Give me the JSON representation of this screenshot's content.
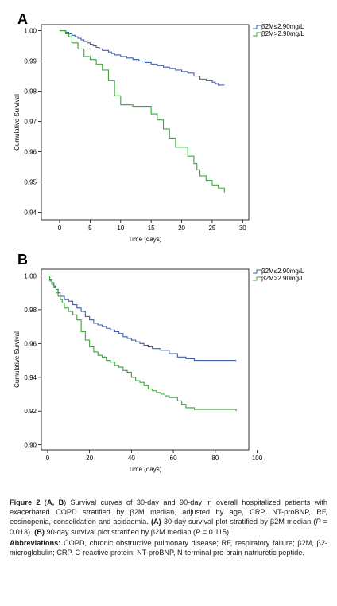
{
  "chart_data": [
    {
      "type": "line",
      "panel_label": "A",
      "xlabel": "Time (days)",
      "ylabel": "Cumulative Survival",
      "xlim": [
        -3,
        31
      ],
      "ylim": [
        0.9375,
        1.002
      ],
      "x_ticks": [
        0,
        5,
        10,
        15,
        20,
        25,
        30
      ],
      "y_ticks": [
        0.94,
        0.95,
        0.96,
        0.97,
        0.98,
        0.99,
        1.0
      ],
      "y_tick_labels": [
        "0.94",
        "0.95",
        "0.96",
        "0.97",
        "0.98",
        "0.99",
        "1.00"
      ],
      "legend_position": "top-right",
      "series": [
        {
          "name": "β2M≤2.90mg/L",
          "color": "#3e5fa8",
          "x": [
            0,
            1,
            1.5,
            2,
            2.5,
            3,
            3.5,
            4,
            4.5,
            5,
            5.5,
            6,
            6.5,
            7,
            8,
            8.5,
            9,
            10,
            11,
            12,
            13,
            14,
            15,
            16,
            17,
            18,
            19,
            20,
            21,
            22,
            23,
            24,
            25,
            25.5,
            26,
            27
          ],
          "y": [
            1.0,
            0.9995,
            0.999,
            0.9985,
            0.998,
            0.9975,
            0.997,
            0.9965,
            0.996,
            0.9955,
            0.995,
            0.9945,
            0.994,
            0.9935,
            0.993,
            0.9925,
            0.992,
            0.9915,
            0.991,
            0.9905,
            0.99,
            0.9895,
            0.989,
            0.9885,
            0.988,
            0.9875,
            0.987,
            0.9865,
            0.986,
            0.985,
            0.984,
            0.9835,
            0.983,
            0.9825,
            0.982,
            0.982
          ]
        },
        {
          "name": "β2M>2.90mg/L",
          "color": "#3aa63a",
          "x": [
            0,
            1,
            1.5,
            2,
            3,
            4,
            5,
            6,
            7,
            8,
            9,
            10,
            11,
            12,
            13,
            14,
            15,
            16,
            17,
            18,
            19,
            20,
            21,
            22,
            22.5,
            23,
            24,
            25,
            26,
            27
          ],
          "y": [
            1.0,
            0.999,
            0.998,
            0.996,
            0.994,
            0.9915,
            0.9905,
            0.989,
            0.987,
            0.9835,
            0.9785,
            0.9755,
            0.9755,
            0.975,
            0.975,
            0.975,
            0.9725,
            0.9705,
            0.9675,
            0.9645,
            0.9615,
            0.9615,
            0.9585,
            0.956,
            0.954,
            0.952,
            0.9505,
            0.949,
            0.948,
            0.9465
          ]
        }
      ]
    },
    {
      "type": "line",
      "panel_label": "B",
      "xlabel": "Time (days)",
      "ylabel": "Cumulative Survival",
      "xlim": [
        -3,
        96
      ],
      "ylim": [
        0.897,
        1.004
      ],
      "x_ticks": [
        0,
        20,
        40,
        60,
        80,
        100
      ],
      "y_ticks": [
        0.9,
        0.92,
        0.94,
        0.96,
        0.98,
        1.0
      ],
      "y_tick_labels": [
        "0.90",
        "0.92",
        "0.94",
        "0.96",
        "0.98",
        "1.00"
      ],
      "legend_position": "top-right",
      "series": [
        {
          "name": "β2M≤2.90mg/L",
          "color": "#3e5fa8",
          "x": [
            0,
            1,
            2,
            3,
            4,
            5,
            6,
            8,
            10,
            12,
            14,
            16,
            18,
            20,
            22,
            24,
            26,
            28,
            30,
            32,
            34,
            36,
            38,
            40,
            42,
            44,
            46,
            48,
            50,
            54,
            58,
            62,
            66,
            70,
            90
          ],
          "y": [
            1.0,
            0.998,
            0.996,
            0.994,
            0.992,
            0.99,
            0.988,
            0.986,
            0.985,
            0.983,
            0.981,
            0.979,
            0.976,
            0.974,
            0.972,
            0.971,
            0.97,
            0.969,
            0.968,
            0.967,
            0.966,
            0.964,
            0.963,
            0.962,
            0.961,
            0.96,
            0.959,
            0.958,
            0.957,
            0.956,
            0.954,
            0.952,
            0.951,
            0.95,
            0.95
          ]
        },
        {
          "name": "β2M>2.90mg/L",
          "color": "#3aa63a",
          "x": [
            0,
            1,
            2,
            3,
            4,
            5,
            6,
            7,
            8,
            10,
            12,
            14,
            16,
            18,
            20,
            22,
            24,
            26,
            28,
            30,
            32,
            34,
            36,
            38,
            40,
            42,
            44,
            46,
            48,
            50,
            52,
            54,
            56,
            58,
            60,
            62,
            64,
            66,
            70,
            90
          ],
          "y": [
            1.0,
            0.997,
            0.995,
            0.993,
            0.99,
            0.988,
            0.986,
            0.984,
            0.981,
            0.979,
            0.977,
            0.974,
            0.967,
            0.962,
            0.958,
            0.955,
            0.953,
            0.952,
            0.95,
            0.949,
            0.947,
            0.946,
            0.944,
            0.943,
            0.94,
            0.938,
            0.937,
            0.935,
            0.933,
            0.932,
            0.931,
            0.93,
            0.929,
            0.928,
            0.928,
            0.926,
            0.924,
            0.922,
            0.921,
            0.92
          ]
        }
      ]
    }
  ],
  "caption": {
    "lead": "Figure 2",
    "lead_paren_open": " (",
    "lead_panels": "A, B",
    "lead_paren_close": ")",
    "main": " Survival curves of 30-day and 90-day in overall hospitalized patients with exacerbated COPD stratified by β2M median, adjusted by age, CRP, NT-proBNP, RF, eosinopenia, consolidation and acidaemia. ",
    "a_label": "(A)",
    "a_text": " 30-day survival plot stratified by β2M median (",
    "a_p": "P",
    "a_p_text": " = 0.013). ",
    "b_label": "(B)",
    "b_text": " 90-day survival plot stratified by β2M median (",
    "b_p": "P",
    "b_p_text": " = 0.115).",
    "abbrev_label": "Abbreviations:",
    "abbrev_text": " COPD, chronic obstructive pulmonary disease; RF, respiratory failure; β2M, β2-microglobulin; CRP, C-reactive protein; NT-proBNP, N-terminal pro-brain natriuretic peptide."
  }
}
